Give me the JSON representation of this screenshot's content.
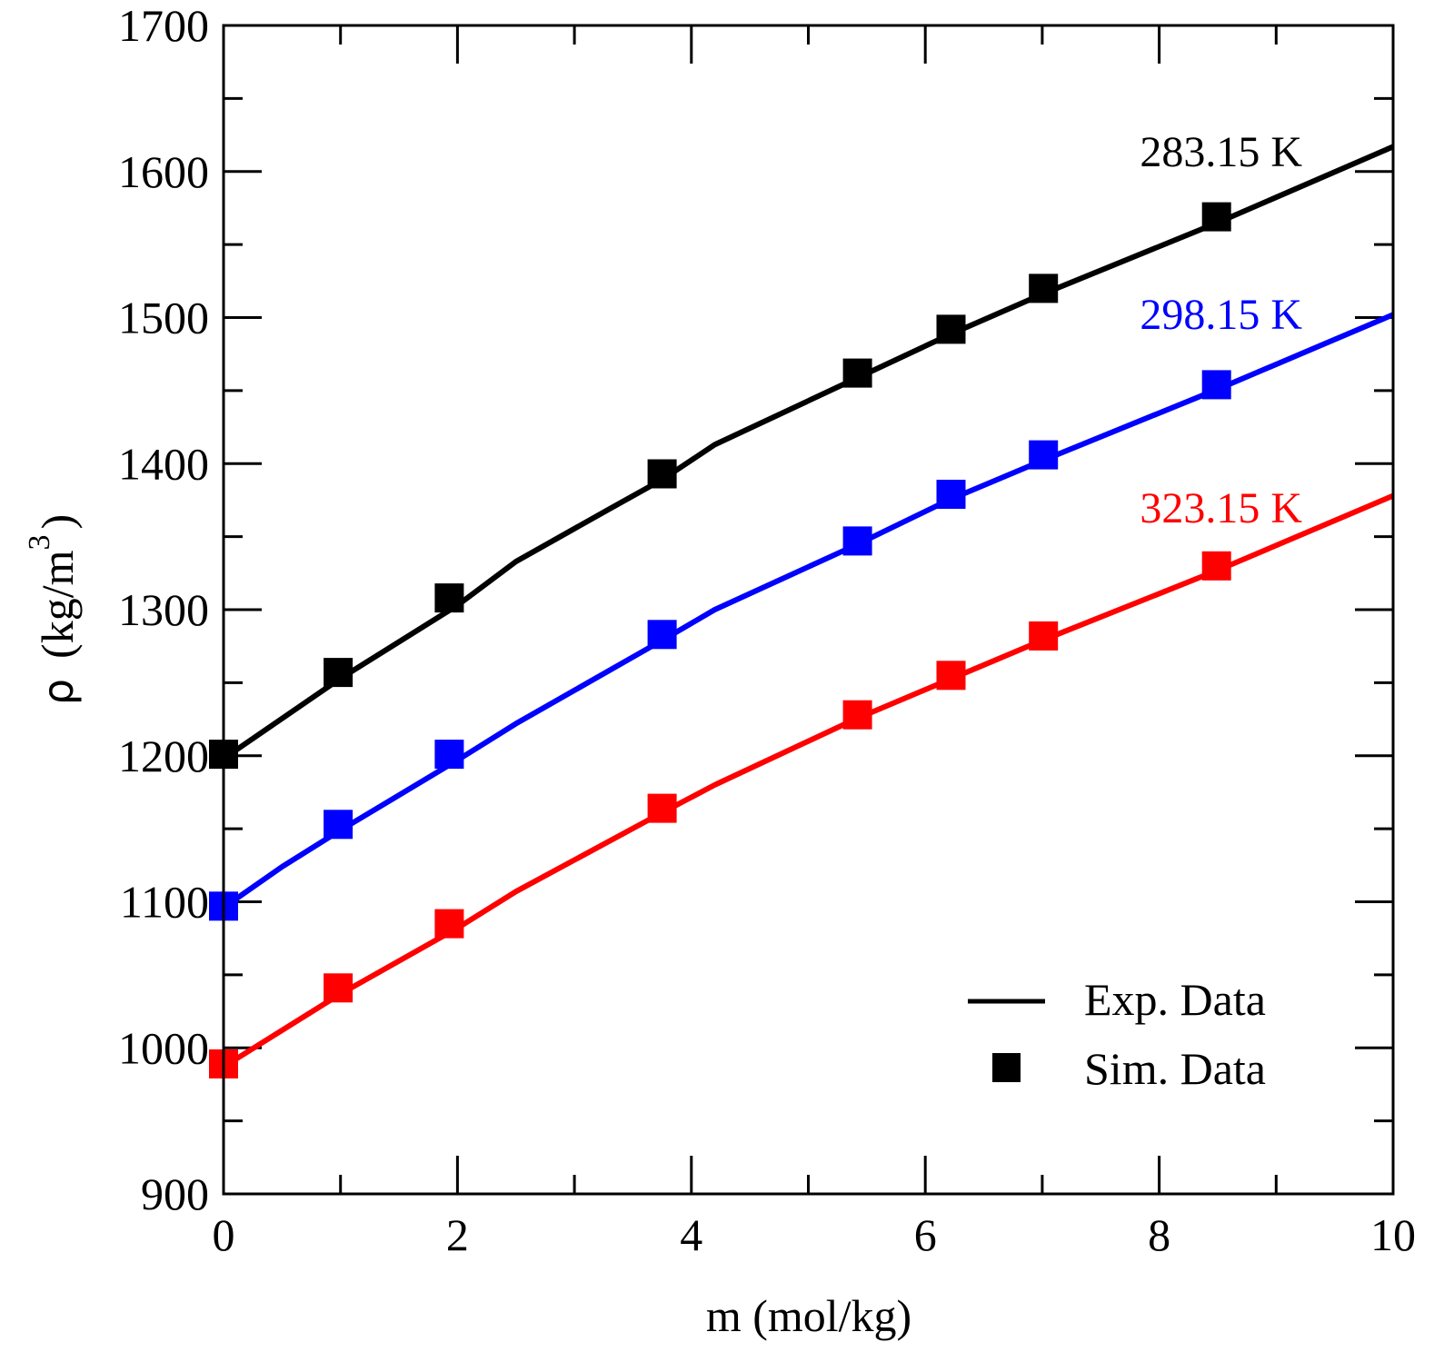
{
  "chart_data": {
    "type": "line",
    "title": "",
    "xlabel": "m (mol/kg)",
    "ylabel_symbol": "ρ",
    "ylabel_unit": "(kg/m",
    "ylabel_exp": "3",
    "ylabel_close": ")",
    "xlim": [
      0,
      10
    ],
    "ylim": [
      900,
      1700
    ],
    "xticks": [
      0,
      2,
      4,
      6,
      8,
      10
    ],
    "xtick_labels": [
      "0",
      "2",
      "4",
      "6",
      "8",
      "10"
    ],
    "x_minor_step": 1,
    "yticks": [
      900,
      1000,
      1100,
      1200,
      1300,
      1400,
      1500,
      1600,
      1700
    ],
    "ytick_labels": [
      "900",
      "1000",
      "1100",
      "1200",
      "1300",
      "1400",
      "1500",
      "1600",
      "1700"
    ],
    "y_minor_step": 50,
    "grid": false,
    "legend": {
      "position": "bottom-right",
      "entries": [
        {
          "label": "Exp. Data",
          "marker": "line"
        },
        {
          "label": "Sim. Data",
          "marker": "square"
        }
      ]
    },
    "series": [
      {
        "name": "283.15 K",
        "label": "283.15 K",
        "color": "#000000",
        "exp": {
          "x": [
            0,
            1,
            2,
            2.5,
            3.3,
            3.75,
            4.2,
            5.4,
            6.2,
            7,
            8.5,
            10
          ],
          "y": [
            1198,
            1253,
            1303,
            1333,
            1369,
            1389,
            1413,
            1458,
            1488,
            1516,
            1565,
            1617
          ]
        },
        "sim": {
          "x": [
            0,
            0.98,
            1.93,
            3.75,
            5.42,
            6.22,
            7.01,
            8.49
          ],
          "y": [
            1201,
            1257,
            1308,
            1393,
            1462,
            1492,
            1520,
            1569
          ]
        }
      },
      {
        "name": "298.15 K",
        "label": "298.15 K",
        "color": "#0000ff",
        "exp": {
          "x": [
            0,
            0.5,
            1,
            2,
            2.5,
            3.75,
            4.2,
            5.4,
            6.2,
            7,
            8.5,
            10
          ],
          "y": [
            1096,
            1124,
            1149,
            1197,
            1222,
            1279,
            1300,
            1344,
            1375,
            1402,
            1451,
            1502
          ]
        },
        "sim": {
          "x": [
            0,
            0.98,
            1.93,
            3.75,
            5.42,
            6.22,
            7.01,
            8.49
          ],
          "y": [
            1097,
            1153,
            1201,
            1283,
            1347,
            1379,
            1406,
            1454
          ]
        }
      },
      {
        "name": "323.15 K",
        "label": "323.15 K",
        "color": "#ff0000",
        "exp": {
          "x": [
            0,
            1,
            2,
            2.5,
            3.75,
            4.2,
            5.4,
            6.2,
            7,
            8.5,
            10
          ],
          "y": [
            987,
            1037,
            1082,
            1107,
            1161,
            1180,
            1225,
            1252,
            1279,
            1327,
            1378
          ]
        },
        "sim": {
          "x": [
            0,
            0.98,
            1.93,
            3.75,
            5.42,
            6.22,
            7.01,
            8.49
          ],
          "y": [
            989,
            1041,
            1085,
            1164,
            1228,
            1255,
            1282,
            1330
          ]
        }
      }
    ]
  }
}
